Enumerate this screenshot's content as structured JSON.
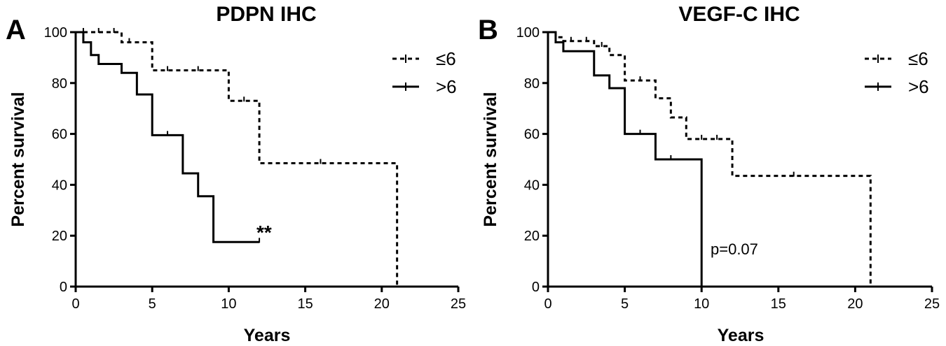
{
  "chart_data": [
    {
      "panel_label": "A",
      "type": "line",
      "subtype": "kaplan-meier-step",
      "title": "PDPN IHC",
      "xlabel": "Years",
      "ylabel": "Percent survival",
      "xlim": [
        0,
        25
      ],
      "ylim": [
        0,
        100
      ],
      "xticks": [
        0,
        5,
        10,
        15,
        20,
        25
      ],
      "yticks": [
        0,
        20,
        40,
        60,
        80,
        100
      ],
      "legend_position": "top-right",
      "annotation": "**",
      "series": [
        {
          "name": "≤6",
          "style": "dashed",
          "steps": [
            [
              0,
              100
            ],
            [
              1,
              100
            ],
            [
              3,
              96
            ],
            [
              5,
              85
            ],
            [
              10,
              73
            ],
            [
              12,
              48.5
            ],
            [
              21,
              0
            ]
          ],
          "censored": [
            [
              0.5,
              100
            ],
            [
              1.5,
              100
            ],
            [
              2.5,
              100
            ],
            [
              3.5,
              96
            ],
            [
              6,
              85
            ],
            [
              8,
              85
            ],
            [
              11,
              73
            ],
            [
              16,
              48.5
            ]
          ]
        },
        {
          "name": ">6",
          "style": "solid",
          "steps": [
            [
              0,
              100
            ],
            [
              0.5,
              96
            ],
            [
              1,
              91
            ],
            [
              1.5,
              87.5
            ],
            [
              3,
              84
            ],
            [
              4,
              75.5
            ],
            [
              5,
              59.5
            ],
            [
              7,
              44.5
            ],
            [
              8,
              35.5
            ],
            [
              9,
              17.5
            ],
            [
              12,
              17.5
            ]
          ],
          "censored": [
            [
              6,
              59.5
            ],
            [
              12,
              17.5
            ]
          ]
        }
      ]
    },
    {
      "panel_label": "B",
      "type": "line",
      "subtype": "kaplan-meier-step",
      "title": "VEGF-C IHC",
      "xlabel": "Years",
      "ylabel": "Percent survival",
      "xlim": [
        0,
        25
      ],
      "ylim": [
        0,
        100
      ],
      "xticks": [
        0,
        5,
        10,
        15,
        20,
        25
      ],
      "yticks": [
        0,
        20,
        40,
        60,
        80,
        100
      ],
      "legend_position": "top-right",
      "annotation": "p=0.07",
      "series": [
        {
          "name": "≤6",
          "style": "dashed",
          "steps": [
            [
              0,
              100
            ],
            [
              0.5,
              98
            ],
            [
              1,
              96.5
            ],
            [
              3,
              94.5
            ],
            [
              4,
              91
            ],
            [
              5,
              81
            ],
            [
              7,
              74
            ],
            [
              8,
              66.5
            ],
            [
              9,
              58
            ],
            [
              12,
              43.5
            ],
            [
              21,
              0
            ]
          ],
          "censored": [
            [
              1.5,
              96.5
            ],
            [
              2.5,
              96.5
            ],
            [
              3.5,
              94.5
            ],
            [
              6,
              81
            ],
            [
              10,
              58
            ],
            [
              11,
              58
            ],
            [
              16,
              43.5
            ]
          ]
        },
        {
          "name": ">6",
          "style": "solid",
          "steps": [
            [
              0,
              100
            ],
            [
              0.5,
              96
            ],
            [
              1,
              92.5
            ],
            [
              3,
              83
            ],
            [
              4,
              78
            ],
            [
              5,
              60
            ],
            [
              7,
              50
            ],
            [
              10,
              0
            ]
          ],
          "censored": [
            [
              6,
              60
            ],
            [
              8,
              50
            ]
          ]
        }
      ]
    }
  ]
}
